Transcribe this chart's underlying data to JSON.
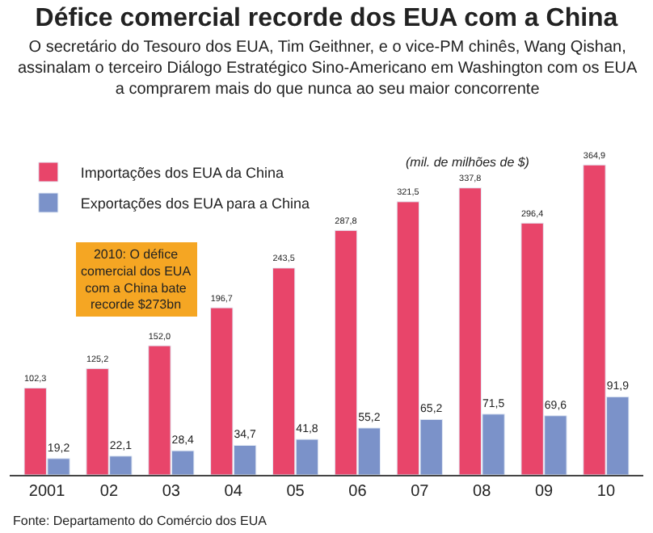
{
  "chart_data": {
    "type": "bar",
    "title": "Défice comercial recorde dos EUA com a China",
    "subtitle": "O secretário do Tesouro dos EUA, Tim Geithner, e o vice-PM chinês, Wang Qishan, assinalam o terceiro Diálogo Estratégico Sino-Americano em Washington com os EUA a comprarem mais do que nunca ao seu maior concorrente",
    "categories": [
      "2001",
      "02",
      "03",
      "04",
      "05",
      "06",
      "07",
      "08",
      "09",
      "10"
    ],
    "series": [
      {
        "name": "Importações dos EUA da China",
        "color": "#e8456a",
        "values": [
          102.3,
          125.2,
          152.0,
          196.7,
          243.5,
          287.8,
          321.5,
          337.8,
          296.4,
          364.9
        ],
        "value_labels": [
          "102,3",
          "125,2",
          "152,0",
          "196,7",
          "243,5",
          "287,8",
          "321,5",
          "337,8",
          "296,4",
          "364,9"
        ]
      },
      {
        "name": "Exportações dos EUA para a China",
        "color": "#7b92c9",
        "values": [
          19.2,
          22.1,
          28.4,
          34.7,
          41.8,
          55.2,
          65.2,
          71.5,
          69.6,
          91.9
        ],
        "value_labels": [
          "19,2",
          "22,1",
          "28,4",
          "34,7",
          "41,8",
          "55,2",
          "65,2",
          "71,5",
          "69,6",
          "91,9"
        ]
      }
    ],
    "tick_labels": "x",
    "legend": "top left",
    "annotations": [
      "(mil. de milhões de $)",
      "2010: O défice comercial dos EUA com a China bate recorde $273bn",
      "Fonte: Departamento do Comércio dos EUA"
    ]
  }
}
